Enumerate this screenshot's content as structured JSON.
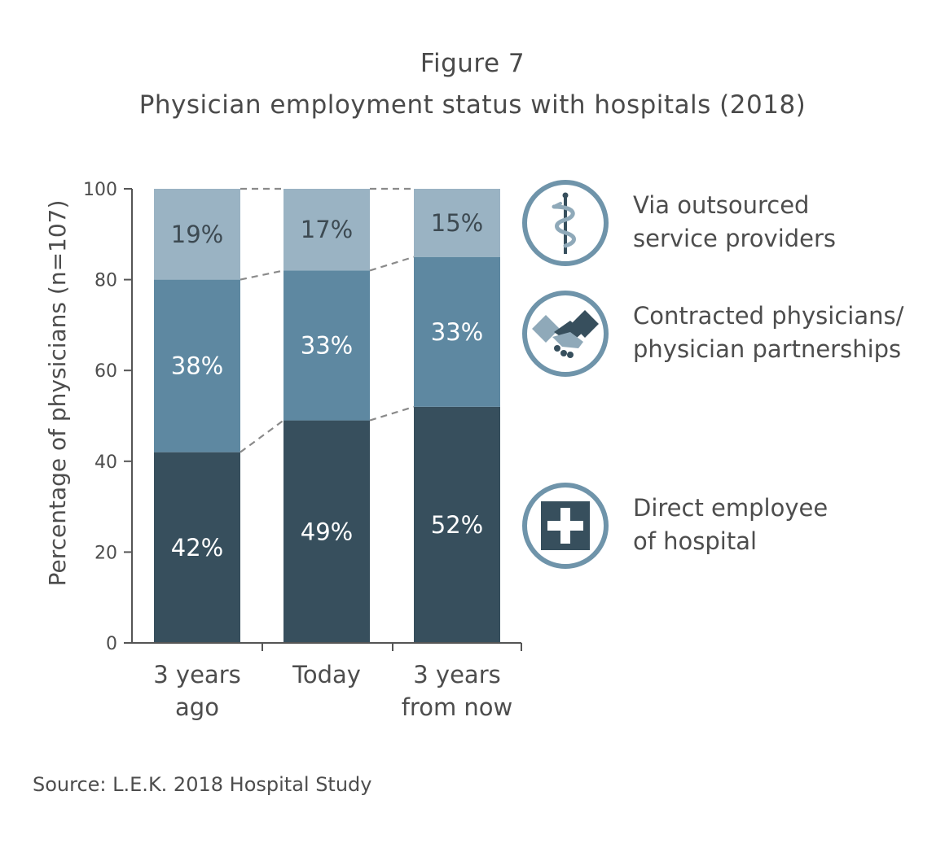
{
  "header": {
    "figure_label": "Figure 7",
    "title": "Physician employment status with hospitals (2018)"
  },
  "chart_data": {
    "type": "bar",
    "stacked": true,
    "title": "Physician employment status with hospitals (2018)",
    "ylabel": "Percentage of physicians (n=107)",
    "xlabel": "",
    "ylim": [
      0,
      100
    ],
    "yticks": [
      0,
      20,
      40,
      60,
      80,
      100
    ],
    "categories": [
      [
        "3 years",
        "ago"
      ],
      [
        "Today"
      ],
      [
        "3 years",
        "from now"
      ]
    ],
    "series": [
      {
        "name": "Direct employee of hospital",
        "values": [
          42,
          49,
          52
        ],
        "labels": [
          "42%",
          "49%",
          "52%"
        ],
        "color": "#374f5d",
        "label_color": "#ffffff"
      },
      {
        "name": "Contracted physicians/ physician partnerships",
        "values": [
          38,
          33,
          33
        ],
        "labels": [
          "38%",
          "33%",
          "33%"
        ],
        "color": "#5e88a1",
        "label_color": "#ffffff"
      },
      {
        "name": "Via outsourced service providers",
        "values": [
          19,
          17,
          15
        ],
        "labels": [
          "19%",
          "17%",
          "15%"
        ],
        "color": "#9ab3c3",
        "label_color": "#3d4a52"
      }
    ],
    "connector_lines": "dashed",
    "legend_position": "right"
  },
  "legend": [
    {
      "icon": "caduceus-icon",
      "lines": [
        "Via outsourced",
        "service providers"
      ]
    },
    {
      "icon": "handshake-icon",
      "lines": [
        "Contracted physicians/",
        "physician partnerships"
      ]
    },
    {
      "icon": "medical-cross-icon",
      "lines": [
        "Direct employee",
        "of hospital"
      ]
    }
  ],
  "colors": {
    "dark": "#374f5d",
    "medium": "#5e88a1",
    "light": "#9ab3c3",
    "icon_ring": "#6f94aa",
    "text": "#4d4d4d"
  },
  "source": "Source: L.E.K. 2018 Hospital Study"
}
